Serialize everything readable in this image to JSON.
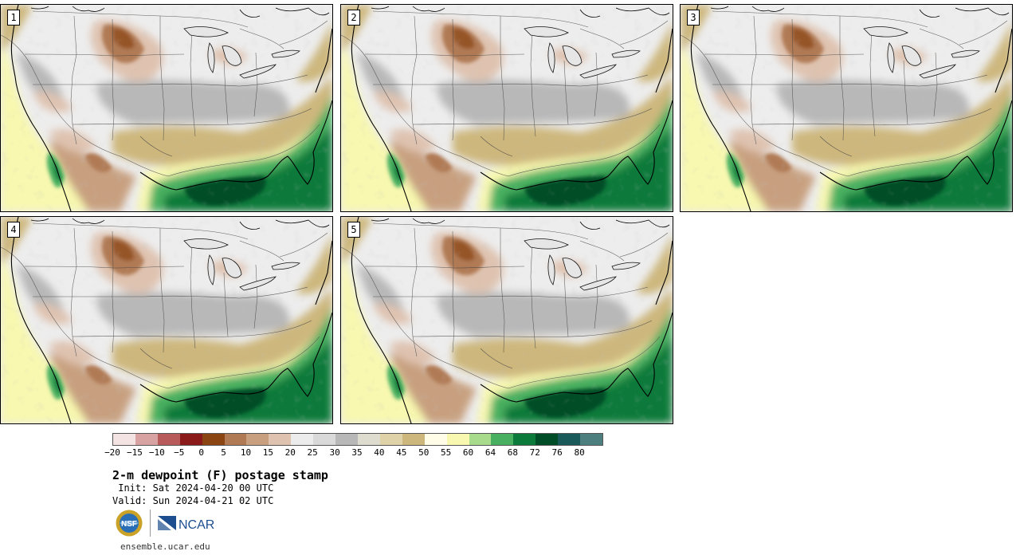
{
  "panels": [
    {
      "label": "1"
    },
    {
      "label": "2"
    },
    {
      "label": "3"
    },
    {
      "label": "4"
    },
    {
      "label": "5"
    }
  ],
  "colorbar": {
    "colors": [
      "#f3e3e3",
      "#d8a2a2",
      "#b85a5a",
      "#8b1a1a",
      "#8b4513",
      "#b07a55",
      "#c8a080",
      "#dfc3b0",
      "#ececec",
      "#d9d9d9",
      "#b8b8b8",
      "#dedbcf",
      "#e0d2a8",
      "#cdb77d",
      "#fffde8",
      "#f8f8b0",
      "#a8dc8c",
      "#48b060",
      "#0c7a3a",
      "#004d28",
      "#1a5a5a",
      "#4d7f7f"
    ],
    "ticks": [
      "−20",
      "−15",
      "−10",
      "−5",
      "0",
      "5",
      "10",
      "15",
      "20",
      "25",
      "30",
      "35",
      "40",
      "45",
      "50",
      "55",
      "60",
      "64",
      "68",
      "72",
      "76",
      "80"
    ]
  },
  "title": "2-m dewpoint (F) postage stamp",
  "init": " Init: Sat 2024-04-20 00 UTC",
  "valid": "Valid: Sun 2024-04-21 02 UTC",
  "logos": {
    "nsf": "NSF",
    "ncar": "NCAR"
  },
  "footer": "ensemble.ucar.edu"
}
